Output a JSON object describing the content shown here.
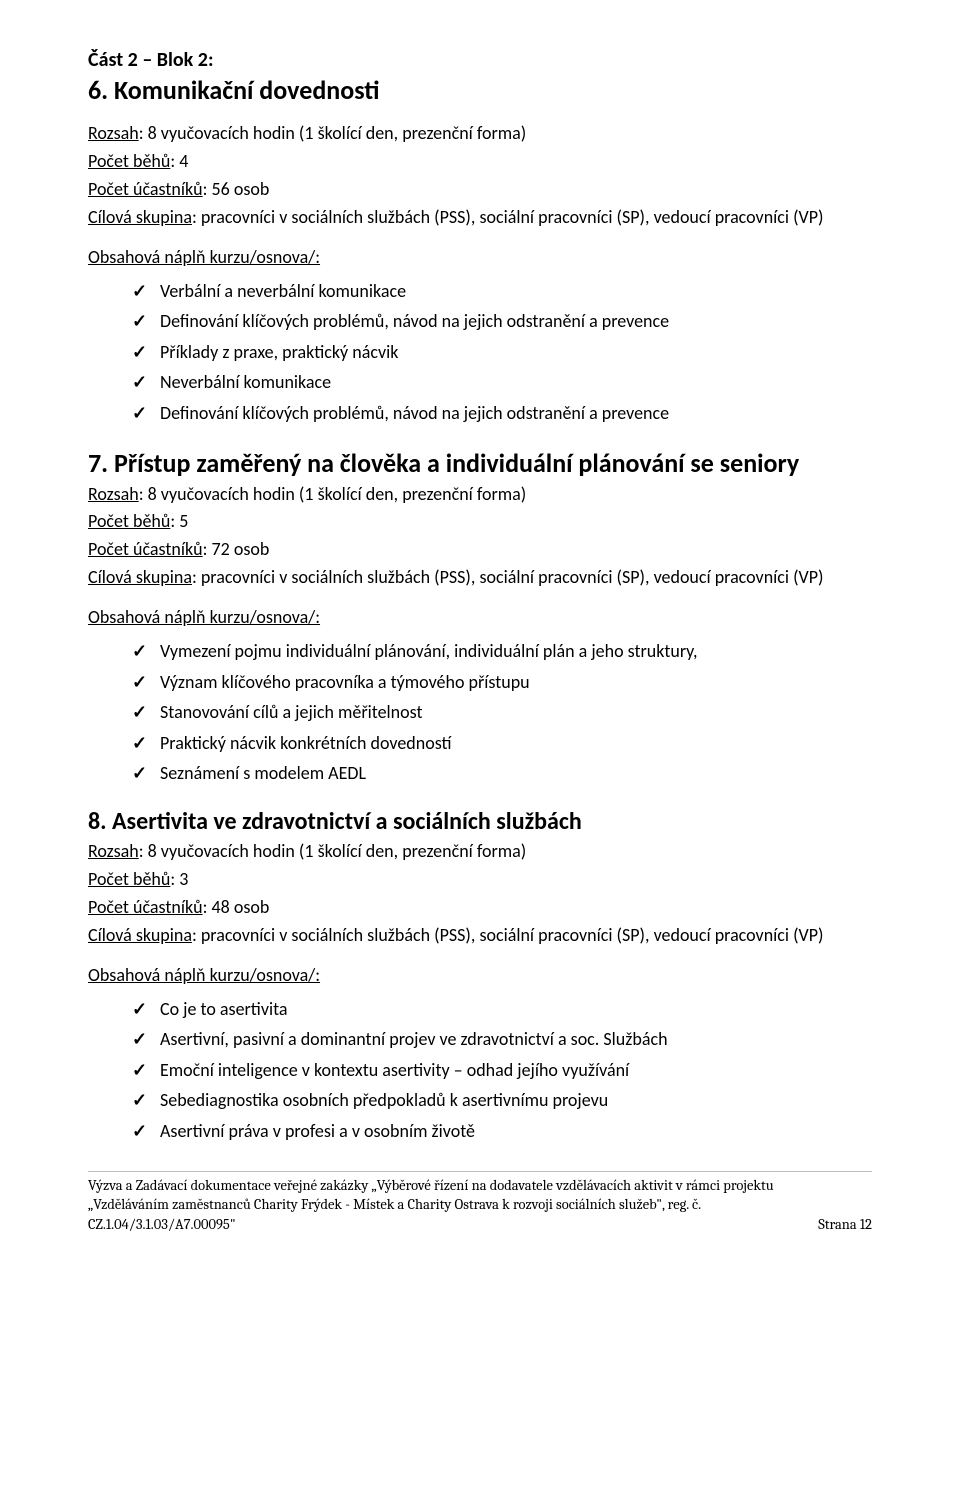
{
  "partHeading": "Část 2 – Blok 2:",
  "sections": [
    {
      "title": "6. Komunikační dovednosti",
      "scope_label": "Rozsah",
      "scope_value": ": 8 vyučovacích hodin (1 školící den, prezenční forma)",
      "runs_label": "Počet běhů",
      "runs_value": ": 4",
      "participants_label": "Počet účastníků",
      "participants_value": ": 56 osob",
      "target_label": "Cílová skupina",
      "target_value": ": pracovníci v sociálních službách (PSS), sociální pracovníci (SP), vedoucí pracovníci (VP)",
      "content_label": "Obsahová náplň kurzu/osnova/:",
      "items": [
        "Verbální a neverbální komunikace",
        "Definování klíčových problémů, návod na jejich odstranění a prevence",
        "Příklady z praxe, praktický nácvik",
        "Neverbální komunikace",
        "Definování klíčových problémů, návod na jejich odstranění a prevence"
      ]
    },
    {
      "title": "7. Přístup zaměřený na člověka a individuální plánování se seniory",
      "scope_label": "Rozsah",
      "scope_value": ": 8 vyučovacích hodin (1 školící den, prezenční forma)",
      "runs_label": "Počet běhů",
      "runs_value": ": 5",
      "participants_label": "Počet účastníků",
      "participants_value": ": 72 osob",
      "target_label": "Cílová skupina",
      "target_value": ": pracovníci v sociálních službách (PSS), sociální pracovníci (SP), vedoucí pracovníci (VP)",
      "content_label": "Obsahová náplň kurzu/osnova/:",
      "items": [
        "Vymezení pojmu individuální plánování, individuální plán a jeho struktury,",
        "Význam klíčového pracovníka a týmového přístupu",
        "Stanovování cílů a jejich měřitelnost",
        "Praktický nácvik konkrétních dovedností",
        "Seznámení s modelem AEDL"
      ]
    },
    {
      "title": "8. Asertivita ve zdravotnictví a sociálních službách",
      "scope_label": "Rozsah",
      "scope_value": ": 8 vyučovacích hodin (1 školící den, prezenční forma)",
      "runs_label": "Počet běhů",
      "runs_value": ": 3",
      "participants_label": "Počet účastníků",
      "participants_value": ": 48 osob",
      "target_label": "Cílová skupina",
      "target_value": ": pracovníci v sociálních službách (PSS), sociální pracovníci (SP), vedoucí pracovníci (VP)",
      "content_label": "Obsahová náplň kurzu/osnova/:",
      "items": [
        "Co je to asertivita",
        "Asertivní, pasivní a dominantní projev ve zdravotnictví a soc. Službách",
        "Emoční inteligence v kontextu asertivity – odhad jejího využívání",
        "Sebediagnostika osobních předpokladů k asertivnímu projevu",
        "Asertivní práva v profesi a v osobním životě"
      ]
    }
  ],
  "footer": {
    "left": "Výzva a Zadávací dokumentace veřejné zakázky „Výběrové řízení na dodavatele vzdělávacích aktivit v rámci projektu „Vzděláváním zaměstnanců Charity Frýdek - Místek a Charity Ostrava k rozvoji sociálních služeb\", reg. č. CZ.1.04/3.1.03/A7.00095\"",
    "right": "Strana 12"
  }
}
